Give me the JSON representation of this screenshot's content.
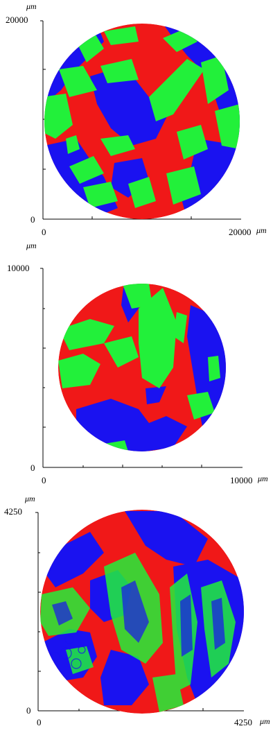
{
  "colors": {
    "blue": "#1a12f0",
    "green": "#22f03a",
    "red": "#f01818",
    "axis": "#000000"
  },
  "panels": [
    {
      "y_unit": "μm",
      "x_unit": "μm",
      "y_max_label": "20000",
      "y_zero_label": "0",
      "x_zero_label": "0",
      "x_max_label": "20000"
    },
    {
      "y_unit": "μm",
      "x_unit": "μm",
      "y_max_label": "10000",
      "y_zero_label": "0",
      "x_zero_label": "0",
      "x_max_label": "10000"
    },
    {
      "y_unit": "μm",
      "x_unit": "μm",
      "y_max_label": "4250",
      "y_zero_label": "0",
      "x_zero_label": "0",
      "x_max_label": "4250"
    }
  ]
}
